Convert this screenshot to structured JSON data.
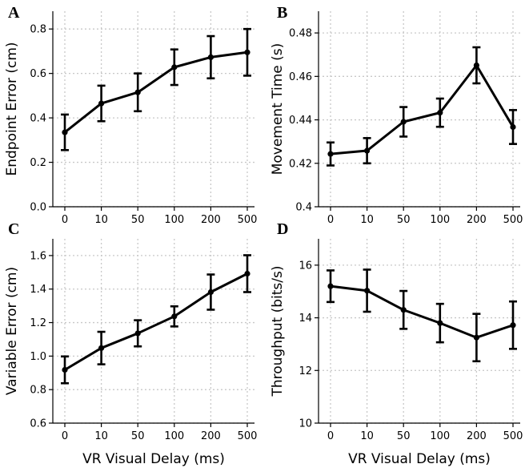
{
  "chart_data": [
    {
      "type": "line",
      "panel_label": "A",
      "categories": [
        "0",
        "10",
        "50",
        "100",
        "200",
        "500"
      ],
      "values": [
        0.335,
        0.465,
        0.515,
        0.628,
        0.673,
        0.695
      ],
      "error": [
        0.08,
        0.08,
        0.085,
        0.08,
        0.095,
        0.105
      ],
      "xlabel": "",
      "ylabel": "Endpoint Error (cm)",
      "ylim": [
        0.0,
        0.88
      ],
      "yticks": [
        0.0,
        0.2,
        0.4,
        0.6,
        0.8
      ],
      "ytick_labels": [
        "0.0",
        "0.2",
        "0.4",
        "0.6",
        "0.8"
      ],
      "grid": true
    },
    {
      "type": "line",
      "panel_label": "B",
      "categories": [
        "0",
        "10",
        "50",
        "100",
        "200",
        "500"
      ],
      "values": [
        0.4243,
        0.4258,
        0.4391,
        0.4433,
        0.4651,
        0.4367
      ],
      "error": [
        0.0053,
        0.0058,
        0.0068,
        0.0065,
        0.0083,
        0.0078
      ],
      "xlabel": "",
      "ylabel": "Movement Time (s)",
      "ylim": [
        0.4,
        0.49
      ],
      "yticks": [
        0.4,
        0.42,
        0.44,
        0.46,
        0.48
      ],
      "ytick_labels": [
        "0.4",
        "0.42",
        "0.44",
        "0.46",
        "0.48"
      ],
      "grid": true
    },
    {
      "type": "line",
      "panel_label": "C",
      "categories": [
        "0",
        "10",
        "50",
        "100",
        "200",
        "500"
      ],
      "values": [
        0.918,
        1.048,
        1.136,
        1.237,
        1.382,
        1.492
      ],
      "error": [
        0.08,
        0.097,
        0.078,
        0.06,
        0.105,
        0.11
      ],
      "xlabel": "VR Visual Delay (ms)",
      "ylabel": "Variable Error (cm)",
      "ylim": [
        0.6,
        1.7
      ],
      "yticks": [
        0.6,
        0.8,
        1.0,
        1.2,
        1.4,
        1.6
      ],
      "ytick_labels": [
        "0.6",
        "0.8",
        "1.0",
        "1.2",
        "1.4",
        "1.6"
      ],
      "grid": true
    },
    {
      "type": "line",
      "panel_label": "D",
      "categories": [
        "0",
        "10",
        "50",
        "100",
        "200",
        "500"
      ],
      "values": [
        15.2,
        15.03,
        14.3,
        13.8,
        13.25,
        13.72
      ],
      "error": [
        0.6,
        0.8,
        0.72,
        0.73,
        0.9,
        0.9
      ],
      "xlabel": "VR Visual Delay (ms)",
      "ylabel": "Throughput (bits/s)",
      "ylim": [
        10,
        17
      ],
      "yticks": [
        10,
        12,
        14,
        16
      ],
      "ytick_labels": [
        "10",
        "12",
        "14",
        "16"
      ],
      "grid": true
    }
  ]
}
